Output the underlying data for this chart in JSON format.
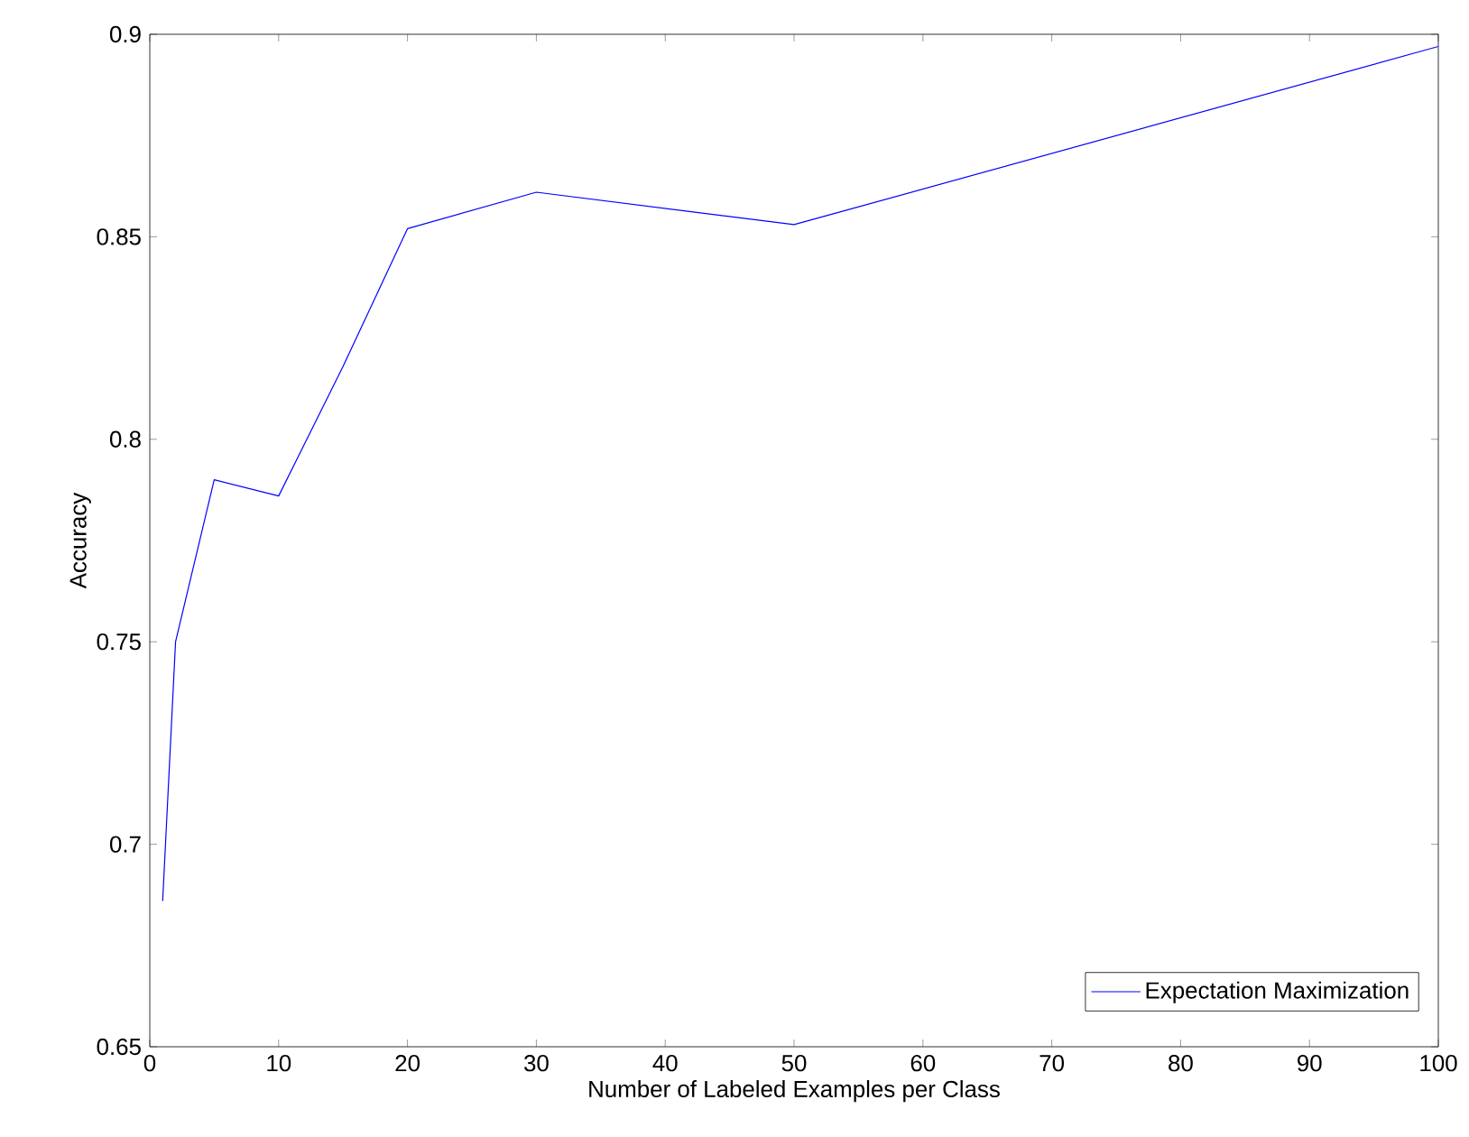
{
  "chart_data": {
    "type": "line",
    "xlabel": "Number of Labeled Examples per Class",
    "ylabel": "Accuracy",
    "x": [
      1,
      2,
      5,
      10,
      15,
      20,
      30,
      50,
      100
    ],
    "series": [
      {
        "name": "Expectation Maximization",
        "color": "#0000ff",
        "values": [
          0.686,
          0.75,
          0.79,
          0.786,
          0.818,
          0.852,
          0.861,
          0.853,
          0.897
        ]
      }
    ],
    "xlim": [
      0,
      100
    ],
    "xticks": [
      0,
      10,
      20,
      30,
      40,
      50,
      60,
      70,
      80,
      90,
      100
    ],
    "ylim": [
      0.65,
      0.9
    ],
    "yticks": [
      0.65,
      0.7,
      0.75,
      0.8,
      0.85,
      0.9
    ],
    "legend": "bottom right",
    "marker": "none",
    "line_style": "solid"
  }
}
